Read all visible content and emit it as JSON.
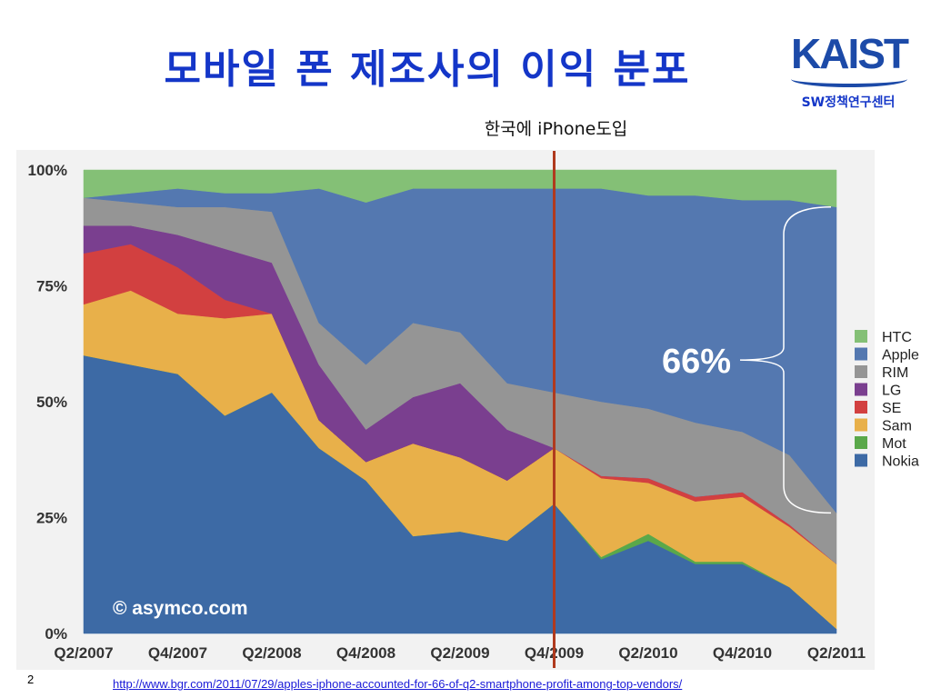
{
  "slide": {
    "title": "모바일 폰 제조사의 이익 분포",
    "page_number": "2",
    "source_url": "http://www.bgr.com/2011/07/29/apples-iphone-accounted-for-66-of-q2-smartphone-profit-among-top-vendors/"
  },
  "logo": {
    "mark_text": "KAIST",
    "subtitle": "SW정책연구센터"
  },
  "chart_data": {
    "type": "area",
    "stacked": true,
    "normalized_percent": true,
    "x": [
      "Q2/2007",
      "Q3/2007",
      "Q4/2007",
      "Q1/2008",
      "Q2/2008",
      "Q3/2008",
      "Q4/2008",
      "Q1/2009",
      "Q2/2009",
      "Q3/2009",
      "Q4/2009",
      "Q1/2010",
      "Q2/2010",
      "Q3/2010",
      "Q4/2010",
      "Q1/2011",
      "Q2/2011"
    ],
    "x_tick_labels": [
      "Q2/2007",
      "Q4/2007",
      "Q2/2008",
      "Q4/2008",
      "Q2/2009",
      "Q4/2009",
      "Q2/2010",
      "Q4/2010",
      "Q2/2011"
    ],
    "y_tick_labels": [
      "0%",
      "25%",
      "50%",
      "75%",
      "100%"
    ],
    "ylim": [
      0,
      100
    ],
    "watermark": "© asymco.com",
    "series": [
      {
        "name": "Nokia",
        "color": "#3d6aa5",
        "values": [
          60,
          58,
          56,
          47,
          52,
          40,
          33,
          21,
          22,
          20,
          28,
          16,
          20,
          15,
          15,
          10,
          1
        ]
      },
      {
        "name": "Mot",
        "color": "#5aa84a",
        "values": [
          0,
          0,
          0,
          0,
          0,
          0,
          0,
          0,
          0,
          0,
          0,
          0.5,
          1.5,
          0.5,
          0.5,
          0,
          0
        ]
      },
      {
        "name": "Sam",
        "color": "#e8b04a",
        "values": [
          11,
          16,
          13,
          21,
          17,
          6,
          4,
          20,
          16,
          13,
          12,
          17,
          11,
          13,
          14,
          13,
          14
        ]
      },
      {
        "name": "SE",
        "color": "#d24040",
        "values": [
          11,
          10,
          10,
          4,
          0,
          0,
          0,
          0,
          0,
          0,
          0,
          0.5,
          1,
          1,
          1,
          0.5,
          0
        ]
      },
      {
        "name": "LG",
        "color": "#7a3f8f",
        "values": [
          6,
          4,
          7,
          11,
          11,
          12,
          7,
          10,
          16,
          11,
          0,
          0,
          0,
          0,
          0,
          0,
          0
        ]
      },
      {
        "name": "RIM",
        "color": "#959595",
        "values": [
          6,
          5,
          6,
          9,
          11,
          9,
          14,
          16,
          11,
          10,
          12,
          16,
          15,
          16,
          13,
          15,
          11
        ]
      },
      {
        "name": "Apple",
        "color": "#5478b0",
        "values": [
          0,
          2,
          4,
          3,
          4,
          29,
          35,
          29,
          31,
          42,
          44,
          46,
          46,
          49,
          50,
          55,
          66
        ]
      },
      {
        "name": "HTC",
        "color": "#84c076",
        "values": [
          6,
          5,
          4,
          5,
          5,
          4,
          7,
          4,
          4,
          4,
          4,
          4,
          5.5,
          5.5,
          6.5,
          6.5,
          8
        ]
      }
    ],
    "legend_order": [
      "HTC",
      "Apple",
      "RIM",
      "LG",
      "SE",
      "Sam",
      "Mot",
      "Nokia"
    ],
    "legend_position": "right",
    "annotations": {
      "marker_label": "한국에 iPhone도입",
      "marker_at": "Q4/2009",
      "marker_color": "#b03a1e",
      "brace_label": "66%",
      "brace_series": "Apple",
      "brace_at": "Q2/2011"
    }
  }
}
